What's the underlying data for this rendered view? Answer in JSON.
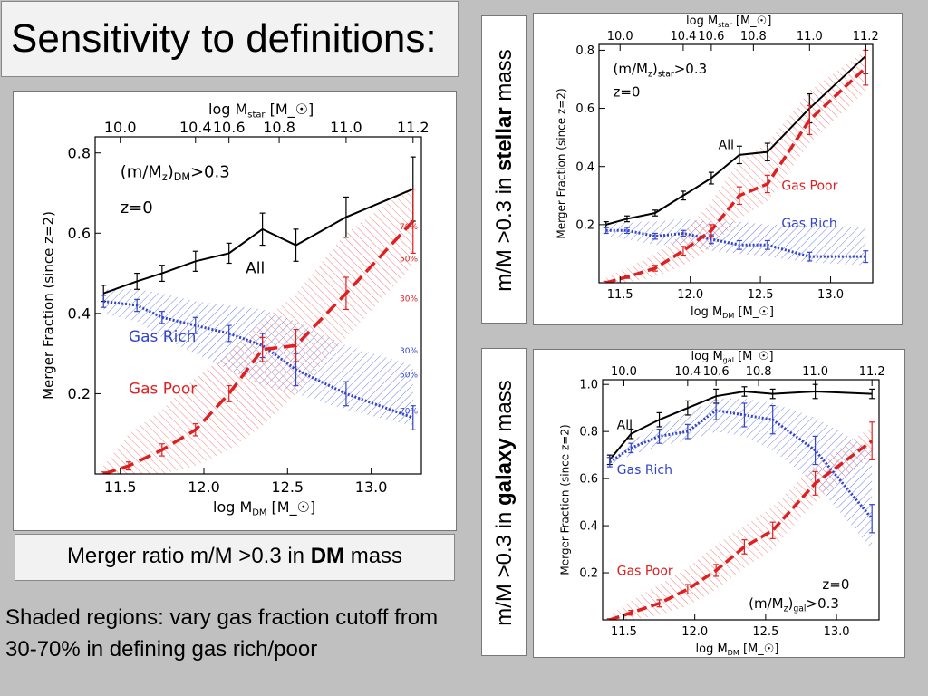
{
  "slide": {
    "title": "Sensitivity to definitions:",
    "caption_prefix": "Merger ratio m/M >0.3 in ",
    "caption_bold": "DM",
    "caption_suffix": " mass",
    "note": "Shaded regions: vary gas fraction cutoff from 30-70% in defining gas rich/poor",
    "stellar_label_prefix": "m/M >0.3 in ",
    "stellar_label_bold": "stellar",
    "stellar_label_suffix": " mass",
    "galaxy_label_prefix": "m/M >0.3 in ",
    "galaxy_label_bold": "galaxy",
    "galaxy_label_suffix": " mass",
    "colors": {
      "all": "#000000",
      "gas_rich": "#3344cc",
      "gas_poor": "#e02020",
      "background": "#c0c0c0"
    }
  },
  "chart_data": [
    {
      "id": "dm",
      "type": "line",
      "xlabel": "log M_DM [M_☉]",
      "top_xlabel": "log M_star [M_☉]",
      "ylabel": "Merger Fraction (since z=2)",
      "xlim": [
        11.35,
        13.3
      ],
      "ylim": [
        0,
        0.84
      ],
      "xticks": [
        11.5,
        12.0,
        12.5,
        13.0
      ],
      "xtick_labels": [
        "11.5",
        "12.0",
        "12.5",
        "13.0"
      ],
      "yticks": [
        0.2,
        0.4,
        0.6,
        0.8
      ],
      "ytick_labels": [
        "0.2",
        "0.4",
        "0.6",
        "0.8"
      ],
      "top_ticks": [
        {
          "x": 11.5,
          "label": "10.0"
        },
        {
          "x": 11.95,
          "label": "10.4"
        },
        {
          "x": 12.15,
          "label": "10.6"
        },
        {
          "x": 12.45,
          "label": "10.8"
        },
        {
          "x": 12.85,
          "label": "11.0"
        },
        {
          "x": 13.25,
          "label": "11.2"
        }
      ],
      "annotations": [
        {
          "text": "(m/M_z)_DM>0.3",
          "x": 11.5,
          "y": 0.74,
          "color": "#000000"
        },
        {
          "text": "z=0",
          "x": 11.5,
          "y": 0.65,
          "color": "#000000"
        }
      ],
      "series_labels": [
        {
          "text": "All",
          "x": 12.25,
          "y": 0.5,
          "color": "#000000"
        },
        {
          "text": "Gas Rich",
          "x": 11.55,
          "y": 0.33,
          "color": "#3344cc"
        },
        {
          "text": "Gas Poor",
          "x": 11.55,
          "y": 0.2,
          "color": "#e02020"
        }
      ],
      "pct_labels": [
        {
          "text": "70%",
          "x": 13.17,
          "y": 0.61,
          "color": "#e02020"
        },
        {
          "text": "50%",
          "x": 13.17,
          "y": 0.53,
          "color": "#e02020"
        },
        {
          "text": "30%",
          "x": 13.17,
          "y": 0.43,
          "color": "#e02020"
        },
        {
          "text": "30%",
          "x": 13.17,
          "y": 0.3,
          "color": "#3344cc"
        },
        {
          "text": "50%",
          "x": 13.17,
          "y": 0.24,
          "color": "#3344cc"
        },
        {
          "text": "70%",
          "x": 13.17,
          "y": 0.15,
          "color": "#3344cc"
        }
      ],
      "series": [
        {
          "name": "All",
          "style": "solid",
          "color": "#000000",
          "x": [
            11.4,
            11.6,
            11.75,
            11.95,
            12.15,
            12.35,
            12.55,
            12.85,
            13.25
          ],
          "y": [
            0.45,
            0.48,
            0.5,
            0.53,
            0.55,
            0.61,
            0.57,
            0.64,
            0.71
          ],
          "err": [
            0.02,
            0.02,
            0.02,
            0.025,
            0.025,
            0.04,
            0.04,
            0.05,
            0.08
          ]
        },
        {
          "name": "Gas Rich",
          "style": "dotted",
          "color": "#3344cc",
          "x": [
            11.4,
            11.6,
            11.75,
            11.95,
            12.15,
            12.35,
            12.55,
            12.85,
            13.25
          ],
          "y": [
            0.43,
            0.42,
            0.39,
            0.37,
            0.35,
            0.32,
            0.26,
            0.2,
            0.14
          ],
          "err": [
            0.015,
            0.015,
            0.015,
            0.02,
            0.02,
            0.03,
            0.04,
            0.03,
            0.03
          ],
          "band_low": [
            0.4,
            0.38,
            0.34,
            0.3,
            0.26,
            0.22,
            0.2,
            0.16,
            0.12
          ],
          "band_high": [
            0.46,
            0.46,
            0.45,
            0.43,
            0.42,
            0.41,
            0.38,
            0.32,
            0.27
          ]
        },
        {
          "name": "Gas Poor",
          "style": "dashed",
          "color": "#e02020",
          "x": [
            11.4,
            11.55,
            11.75,
            11.95,
            12.15,
            12.35,
            12.55,
            12.85,
            13.25
          ],
          "y": [
            0.0,
            0.02,
            0.06,
            0.11,
            0.2,
            0.31,
            0.32,
            0.45,
            0.63
          ],
          "err": [
            0.005,
            0.01,
            0.015,
            0.015,
            0.02,
            0.03,
            0.04,
            0.04,
            0.08
          ],
          "band_low": [
            0.0,
            0.0,
            0.0,
            0.02,
            0.06,
            0.12,
            0.2,
            0.34,
            0.52
          ],
          "band_high": [
            0.02,
            0.1,
            0.16,
            0.24,
            0.3,
            0.38,
            0.45,
            0.6,
            0.72
          ]
        }
      ]
    },
    {
      "id": "star",
      "type": "line",
      "xlabel": "log M_DM [M_☉]",
      "top_xlabel": "log M_star [M_☉]",
      "ylabel": "Merger Fraction (since z=2)",
      "xlim": [
        11.35,
        13.3
      ],
      "ylim": [
        0.0,
        0.82
      ],
      "xticks": [
        11.5,
        12.0,
        12.5,
        13.0
      ],
      "xtick_labels": [
        "11.5",
        "12.0",
        "12.5",
        "13.0"
      ],
      "yticks": [
        0.2,
        0.4,
        0.6,
        0.8
      ],
      "ytick_labels": [
        "0.2",
        "0.4",
        "0.6",
        "0.8"
      ],
      "top_ticks": [
        {
          "x": 11.5,
          "label": "10.0"
        },
        {
          "x": 11.95,
          "label": "10.4"
        },
        {
          "x": 12.15,
          "label": "10.6"
        },
        {
          "x": 12.45,
          "label": "10.8"
        },
        {
          "x": 12.85,
          "label": "11.0"
        },
        {
          "x": 13.25,
          "label": "11.2"
        }
      ],
      "annotations": [
        {
          "text": "(m/M_z)_star>0.3",
          "x": 11.45,
          "y": 0.72,
          "color": "#000000"
        },
        {
          "text": "z=0",
          "x": 11.45,
          "y": 0.64,
          "color": "#000000"
        }
      ],
      "series_labels": [
        {
          "text": "All",
          "x": 12.2,
          "y": 0.46,
          "color": "#000000"
        },
        {
          "text": "Gas Poor",
          "x": 12.65,
          "y": 0.32,
          "color": "#e02020"
        },
        {
          "text": "Gas Rich",
          "x": 12.65,
          "y": 0.19,
          "color": "#3344cc"
        }
      ],
      "pct_labels": [],
      "series": [
        {
          "name": "All",
          "style": "solid",
          "color": "#000000",
          "x": [
            11.4,
            11.55,
            11.75,
            11.95,
            12.15,
            12.35,
            12.55,
            12.85,
            13.25
          ],
          "y": [
            0.2,
            0.22,
            0.24,
            0.3,
            0.36,
            0.44,
            0.45,
            0.6,
            0.78
          ],
          "err": [
            0.01,
            0.01,
            0.01,
            0.015,
            0.02,
            0.03,
            0.03,
            0.05,
            0.06
          ]
        },
        {
          "name": "Gas Rich",
          "style": "dotted",
          "color": "#3344cc",
          "x": [
            11.4,
            11.55,
            11.75,
            11.95,
            12.15,
            12.35,
            12.55,
            12.85,
            13.25
          ],
          "y": [
            0.18,
            0.18,
            0.16,
            0.17,
            0.15,
            0.13,
            0.13,
            0.09,
            0.09
          ],
          "err": [
            0.01,
            0.01,
            0.01,
            0.01,
            0.015,
            0.015,
            0.015,
            0.015,
            0.02
          ],
          "band_low": [
            0.16,
            0.15,
            0.13,
            0.13,
            0.11,
            0.1,
            0.09,
            0.07,
            0.06
          ],
          "band_high": [
            0.2,
            0.21,
            0.21,
            0.22,
            0.21,
            0.21,
            0.2,
            0.2,
            0.19
          ]
        },
        {
          "name": "Gas Poor",
          "style": "dashed",
          "color": "#e02020",
          "x": [
            11.4,
            11.55,
            11.75,
            11.95,
            12.15,
            12.35,
            12.55,
            12.85,
            13.25
          ],
          "y": [
            0.0,
            0.02,
            0.05,
            0.11,
            0.18,
            0.3,
            0.34,
            0.56,
            0.74
          ],
          "err": [
            0.005,
            0.005,
            0.01,
            0.015,
            0.02,
            0.03,
            0.03,
            0.05,
            0.06
          ],
          "band_low": [
            0.0,
            0.0,
            0.02,
            0.06,
            0.12,
            0.22,
            0.28,
            0.48,
            0.66
          ],
          "band_high": [
            0.02,
            0.05,
            0.1,
            0.17,
            0.28,
            0.42,
            0.48,
            0.66,
            0.8
          ]
        }
      ]
    },
    {
      "id": "gal",
      "type": "line",
      "xlabel": "log M_DM [M_☉]",
      "top_xlabel": "log M_gal [M_☉]",
      "ylabel": "Merger Fraction (since z=2)",
      "xlim": [
        11.35,
        13.3
      ],
      "ylim": [
        0.0,
        1.02
      ],
      "xticks": [
        11.5,
        12.0,
        12.5,
        13.0
      ],
      "xtick_labels": [
        "11.5",
        "12.0",
        "12.5",
        "13.0"
      ],
      "yticks": [
        0.2,
        0.4,
        0.6,
        0.8,
        1.0
      ],
      "ytick_labels": [
        "0.2",
        "0.4",
        "0.6",
        "0.8",
        "1.0"
      ],
      "top_ticks": [
        {
          "x": 11.5,
          "label": "10.0"
        },
        {
          "x": 11.95,
          "label": "10.4"
        },
        {
          "x": 12.15,
          "label": "10.6"
        },
        {
          "x": 12.45,
          "label": "10.8"
        },
        {
          "x": 12.85,
          "label": "11.0"
        },
        {
          "x": 13.25,
          "label": "11.2"
        }
      ],
      "annotations": [
        {
          "text": "z=0",
          "x": 12.9,
          "y": 0.13,
          "color": "#000000"
        },
        {
          "text": "(m/M_z)_gal>0.3",
          "x": 12.38,
          "y": 0.05,
          "color": "#000000"
        }
      ],
      "series_labels": [
        {
          "text": "All",
          "x": 11.45,
          "y": 0.81,
          "color": "#000000"
        },
        {
          "text": "Gas Rich",
          "x": 11.45,
          "y": 0.62,
          "color": "#3344cc"
        },
        {
          "text": "Gas Poor",
          "x": 11.45,
          "y": 0.19,
          "color": "#e02020"
        }
      ],
      "pct_labels": [],
      "series": [
        {
          "name": "All",
          "style": "solid",
          "color": "#000000",
          "x": [
            11.4,
            11.55,
            11.75,
            11.95,
            12.15,
            12.35,
            12.55,
            12.85,
            13.25
          ],
          "y": [
            0.68,
            0.79,
            0.85,
            0.9,
            0.95,
            0.97,
            0.96,
            0.97,
            0.96
          ],
          "err": [
            0.02,
            0.02,
            0.03,
            0.03,
            0.03,
            0.02,
            0.02,
            0.03,
            0.02
          ]
        },
        {
          "name": "Gas Rich",
          "style": "dotted",
          "color": "#3344cc",
          "x": [
            11.4,
            11.55,
            11.75,
            11.95,
            12.15,
            12.35,
            12.55,
            12.85,
            13.25
          ],
          "y": [
            0.67,
            0.73,
            0.78,
            0.8,
            0.89,
            0.87,
            0.85,
            0.72,
            0.43
          ],
          "err": [
            0.02,
            0.02,
            0.03,
            0.03,
            0.04,
            0.05,
            0.06,
            0.06,
            0.06
          ],
          "band_low": [
            0.66,
            0.7,
            0.74,
            0.76,
            0.8,
            0.78,
            0.72,
            0.58,
            0.3
          ],
          "band_high": [
            0.69,
            0.76,
            0.82,
            0.88,
            0.94,
            0.94,
            0.92,
            0.86,
            0.72
          ]
        },
        {
          "name": "Gas Poor",
          "style": "dashed",
          "color": "#e02020",
          "x": [
            11.4,
            11.55,
            11.75,
            11.95,
            12.15,
            12.35,
            12.55,
            12.85,
            13.25
          ],
          "y": [
            0.0,
            0.03,
            0.07,
            0.13,
            0.21,
            0.31,
            0.38,
            0.58,
            0.76
          ],
          "err": [
            0.005,
            0.01,
            0.015,
            0.02,
            0.025,
            0.03,
            0.035,
            0.05,
            0.08
          ],
          "band_low": [
            0.0,
            0.0,
            0.02,
            0.06,
            0.13,
            0.22,
            0.3,
            0.5,
            0.7
          ],
          "band_high": [
            0.02,
            0.08,
            0.15,
            0.22,
            0.32,
            0.4,
            0.48,
            0.66,
            0.82
          ]
        }
      ]
    }
  ]
}
